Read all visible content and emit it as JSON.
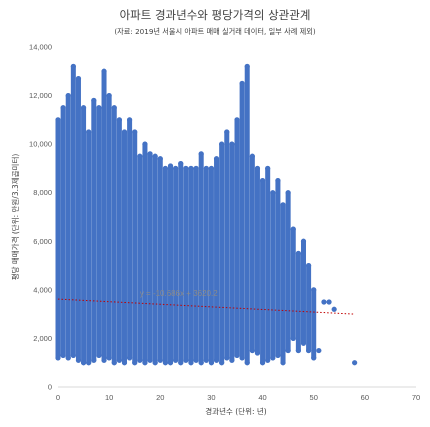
{
  "chart_data": {
    "type": "scatter",
    "title": "아파트 경과년수와 평당가격의 상관관계",
    "subtitle": "(자료: 2019년 서울시 아파트 매매 실거래 데이터, 일부 사례 제외)",
    "xlabel": "경과년수 (단위: 년)",
    "ylabel": "평당 매매가격 (단위: 만원/3.3제곱미터)",
    "xlim": [
      0,
      70
    ],
    "ylim": [
      0,
      14000
    ],
    "x_ticks": [
      "0",
      "10",
      "20",
      "30",
      "40",
      "50",
      "60",
      "70"
    ],
    "y_ticks": [
      "0",
      "2,000",
      "4,000",
      "6,000",
      "8,000",
      "10,000",
      "12,000",
      "14,000"
    ],
    "grid": false,
    "trendline": {
      "type": "linear",
      "slope": -10.686,
      "intercept": 3620.2,
      "x_range": [
        0,
        58
      ],
      "label": "y = -10.686x + 3620.2",
      "color": "#c00000"
    },
    "marker_color": "#4472c4",
    "series": [
      {
        "points": [
          [
            0,
            1200
          ],
          [
            0,
            11000
          ],
          [
            1,
            1300
          ],
          [
            1,
            11500
          ],
          [
            2,
            1200
          ],
          [
            2,
            12000
          ],
          [
            3,
            1300
          ],
          [
            3,
            13200
          ],
          [
            4,
            1100
          ],
          [
            4,
            12700
          ],
          [
            5,
            1000
          ],
          [
            5,
            11500
          ],
          [
            6,
            1000
          ],
          [
            6,
            10500
          ],
          [
            7,
            1100
          ],
          [
            7,
            11800
          ],
          [
            8,
            1300
          ],
          [
            8,
            11500
          ],
          [
            9,
            1100
          ],
          [
            9,
            13000
          ],
          [
            10,
            1200
          ],
          [
            10,
            12000
          ],
          [
            11,
            1000
          ],
          [
            11,
            11500
          ],
          [
            12,
            1100
          ],
          [
            12,
            11000
          ],
          [
            13,
            1000
          ],
          [
            13,
            10500
          ],
          [
            14,
            1200
          ],
          [
            14,
            11000
          ],
          [
            15,
            1000
          ],
          [
            15,
            10500
          ],
          [
            16,
            1100
          ],
          [
            16,
            9500
          ],
          [
            17,
            1000
          ],
          [
            17,
            10000
          ],
          [
            18,
            1100
          ],
          [
            18,
            9600
          ],
          [
            19,
            1000
          ],
          [
            19,
            9500
          ],
          [
            20,
            1100
          ],
          [
            20,
            9400
          ],
          [
            21,
            1000
          ],
          [
            21,
            9000
          ],
          [
            22,
            1000
          ],
          [
            22,
            9100
          ],
          [
            23,
            1100
          ],
          [
            23,
            9000
          ],
          [
            24,
            1000
          ],
          [
            24,
            9200
          ],
          [
            25,
            1100
          ],
          [
            25,
            9000
          ],
          [
            26,
            1000
          ],
          [
            26,
            9000
          ],
          [
            27,
            1100
          ],
          [
            27,
            9000
          ],
          [
            28,
            1000
          ],
          [
            28,
            9600
          ],
          [
            29,
            1100
          ],
          [
            29,
            9000
          ],
          [
            30,
            1000
          ],
          [
            30,
            9000
          ],
          [
            31,
            1100
          ],
          [
            31,
            9400
          ],
          [
            32,
            1000
          ],
          [
            32,
            10000
          ],
          [
            33,
            1200
          ],
          [
            33,
            10500
          ],
          [
            34,
            1100
          ],
          [
            34,
            10000
          ],
          [
            35,
            1300
          ],
          [
            35,
            11000
          ],
          [
            36,
            1200
          ],
          [
            36,
            12500
          ],
          [
            37,
            1000
          ],
          [
            37,
            13200
          ],
          [
            38,
            1500
          ],
          [
            38,
            9500
          ],
          [
            39,
            1400
          ],
          [
            39,
            9000
          ],
          [
            40,
            1000
          ],
          [
            40,
            8500
          ],
          [
            41,
            1100
          ],
          [
            41,
            9000
          ],
          [
            42,
            1200
          ],
          [
            42,
            8000
          ],
          [
            43,
            1300
          ],
          [
            43,
            8500
          ],
          [
            44,
            1000
          ],
          [
            44,
            7500
          ],
          [
            45,
            1500
          ],
          [
            45,
            8000
          ],
          [
            46,
            2000
          ],
          [
            46,
            6500
          ],
          [
            47,
            1500
          ],
          [
            47,
            5500
          ],
          [
            48,
            1800
          ],
          [
            48,
            6000
          ],
          [
            49,
            1500
          ],
          [
            49,
            5000
          ],
          [
            50,
            1200
          ],
          [
            50,
            4000
          ],
          [
            51,
            1500
          ],
          [
            52,
            3500
          ],
          [
            53,
            3500
          ],
          [
            54,
            3200
          ],
          [
            58,
            1000
          ]
        ]
      }
    ]
  }
}
